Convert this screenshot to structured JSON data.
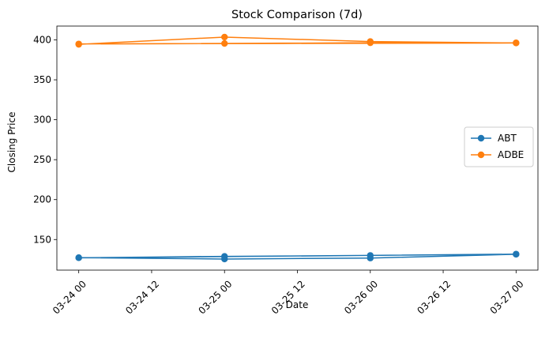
{
  "chart_data": {
    "type": "line",
    "title": "Stock Comparison (7d)",
    "xlabel": "Date",
    "ylabel": "Closing Price",
    "x_ticks": [
      {
        "value": 0,
        "label": "03-24 00"
      },
      {
        "value": 0.5,
        "label": "03-24 12"
      },
      {
        "value": 1,
        "label": "03-25 00"
      },
      {
        "value": 1.5,
        "label": "03-25 12"
      },
      {
        "value": 2,
        "label": "03-26 00"
      },
      {
        "value": 2.5,
        "label": "03-26 12"
      },
      {
        "value": 3,
        "label": "03-27 00"
      }
    ],
    "y_ticks": [
      150,
      200,
      250,
      300,
      350,
      400
    ],
    "xlim": [
      -0.15,
      3.15
    ],
    "ylim": [
      111.7,
      417.3
    ],
    "grid": false,
    "legend_position": "center-right",
    "series": [
      {
        "name": "ABT",
        "color": "#1f77b4",
        "marker": "circle",
        "x": [
          0,
          1,
          2,
          3,
          0,
          1,
          2,
          3
        ],
        "y": [
          127.3,
          125.6,
          126.8,
          131.6,
          127.2,
          128.9,
          130.1,
          131.7
        ]
      },
      {
        "name": "ADBE",
        "color": "#ff7f0e",
        "marker": "circle",
        "x": [
          0,
          1,
          2,
          3,
          0,
          1,
          2,
          3
        ],
        "y": [
          394.4,
          403.5,
          397.9,
          396.1,
          394.9,
          395.5,
          396.4,
          396.3
        ]
      }
    ]
  }
}
